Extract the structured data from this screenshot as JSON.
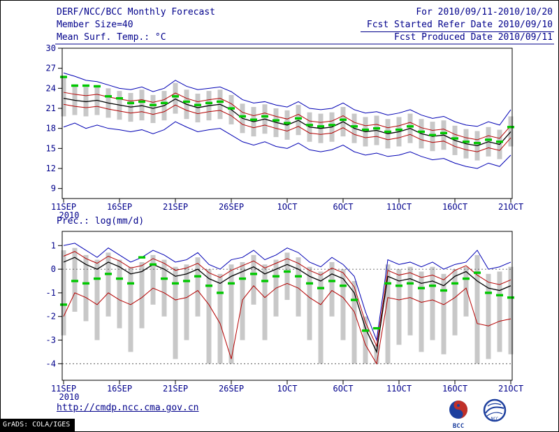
{
  "header": {
    "title": "DERF/NCC/BCC Monthly Forecast",
    "member_size": "Member Size=40",
    "for_period": "For 2010/09/11-2010/10/20",
    "fcst_refer": "Fcst Started Refer Date 2010/09/10",
    "fcst_produced": "Fcst Produced Date 2010/09/11"
  },
  "footer": {
    "url": "http://cmdp.ncc.cma.gov.cn",
    "credit": "GrADS: COLA/IGES",
    "bcc_logo_text": "BCC",
    "ncc_logo_text": "NCC"
  },
  "colors": {
    "label_text": "#00008b",
    "envelope_line": "#0000b4",
    "quartile_line": "#b40000",
    "mean_line": "#000000",
    "median_marker": "#00c800",
    "spread_bar": "#c8c8c8",
    "frame": "#000000"
  },
  "chart_data": [
    {
      "id": "surface-temperature",
      "type": "line",
      "title": "Mean Surf. Temp.: °C",
      "ylim": [
        7.5,
        30
      ],
      "yticks": [
        30,
        27,
        24,
        21,
        18,
        15,
        12,
        9
      ],
      "x_tick_days": [
        0,
        5,
        10,
        15,
        20,
        25,
        30,
        35,
        40
      ],
      "x_tick_labels": [
        "11SEP",
        "16SEP",
        "21SEP",
        "26SEP",
        "1OCT",
        "6OCT",
        "11OCT",
        "16OCT",
        "21OCT"
      ],
      "x_year_label": "2010",
      "series": [
        {
          "name": "ensemble-max",
          "color": "#0000b4",
          "width": 1,
          "values": [
            26.3,
            25.8,
            25.2,
            25.0,
            24.5,
            24.0,
            23.8,
            24.2,
            23.5,
            24.0,
            25.2,
            24.3,
            23.8,
            24.0,
            24.2,
            23.5,
            22.3,
            21.8,
            22.0,
            21.5,
            21.2,
            22.0,
            21.0,
            20.8,
            21.0,
            21.8,
            20.8,
            20.3,
            20.5,
            20.0,
            20.3,
            20.8,
            20.0,
            19.5,
            19.8,
            19.0,
            18.5,
            18.3,
            19.0,
            18.5,
            20.8
          ]
        },
        {
          "name": "ensemble-min",
          "color": "#0000b4",
          "width": 1,
          "values": [
            18.2,
            18.8,
            18.0,
            18.5,
            18.0,
            17.8,
            17.5,
            17.8,
            17.2,
            17.8,
            19.0,
            18.2,
            17.5,
            17.8,
            18.0,
            17.0,
            16.0,
            15.5,
            16.0,
            15.3,
            15.0,
            15.8,
            14.8,
            14.5,
            14.8,
            15.5,
            14.5,
            14.0,
            14.3,
            13.8,
            14.0,
            14.5,
            13.8,
            13.3,
            13.5,
            12.8,
            12.3,
            12.0,
            12.8,
            12.3,
            14.0
          ]
        },
        {
          "name": "plus-std",
          "color": "#b40000",
          "width": 1,
          "values": [
            23.4,
            23.1,
            22.9,
            23.1,
            22.7,
            22.4,
            22.1,
            22.3,
            21.9,
            22.3,
            23.3,
            22.5,
            22.0,
            22.3,
            22.5,
            21.7,
            20.4,
            19.9,
            20.3,
            19.8,
            19.4,
            20.1,
            19.1,
            18.9,
            19.1,
            19.9,
            18.9,
            18.4,
            18.6,
            18.1,
            18.4,
            18.9,
            18.1,
            17.7,
            17.9,
            17.1,
            16.6,
            16.3,
            16.9,
            16.5,
            18.4
          ]
        },
        {
          "name": "minus-std",
          "color": "#b40000",
          "width": 1,
          "values": [
            21.6,
            21.3,
            21.1,
            21.3,
            20.9,
            20.6,
            20.3,
            20.5,
            20.1,
            20.5,
            21.5,
            20.7,
            20.2,
            20.5,
            20.7,
            19.9,
            18.6,
            18.1,
            18.5,
            18.0,
            17.6,
            18.3,
            17.3,
            17.1,
            17.3,
            18.1,
            17.1,
            16.6,
            16.8,
            16.3,
            16.6,
            17.1,
            16.3,
            15.9,
            16.1,
            15.3,
            14.8,
            14.5,
            15.1,
            14.7,
            16.6
          ]
        },
        {
          "name": "ensemble-mean",
          "color": "#000000",
          "width": 1.3,
          "values": [
            22.5,
            22.2,
            22.0,
            22.2,
            21.8,
            21.5,
            21.2,
            21.4,
            21.0,
            21.4,
            22.4,
            21.6,
            21.1,
            21.4,
            21.6,
            20.8,
            19.5,
            19.0,
            19.4,
            18.9,
            18.5,
            19.2,
            18.2,
            18.0,
            18.2,
            19.0,
            18.0,
            17.5,
            17.7,
            17.2,
            17.5,
            18.0,
            17.2,
            16.8,
            17.0,
            16.2,
            15.7,
            15.4,
            16.0,
            15.6,
            17.5
          ]
        }
      ],
      "markers": {
        "name": "median",
        "color": "#00c800",
        "values": [
          25.7,
          24.4,
          24.4,
          24.3,
          22.8,
          22.5,
          21.8,
          22.0,
          21.5,
          21.8,
          22.8,
          22.0,
          21.5,
          21.8,
          22.0,
          21.0,
          19.8,
          19.3,
          19.8,
          19.2,
          18.8,
          19.5,
          18.5,
          18.3,
          18.5,
          19.3,
          18.3,
          17.8,
          18.0,
          17.5,
          17.8,
          18.3,
          17.5,
          17.0,
          17.3,
          16.5,
          16.0,
          15.8,
          16.3,
          16.0,
          18.2
        ]
      },
      "bars": {
        "name": "member-spread",
        "color": "#c8c8c8",
        "high": [
          25.9,
          24.6,
          24.2,
          24.5,
          24.0,
          23.6,
          23.3,
          23.8,
          23.0,
          23.6,
          24.8,
          23.8,
          23.2,
          23.6,
          23.8,
          23.0,
          21.7,
          21.2,
          21.6,
          21.0,
          20.7,
          21.5,
          20.4,
          20.2,
          20.4,
          21.2,
          20.2,
          19.7,
          19.9,
          19.4,
          19.7,
          20.2,
          19.4,
          19.0,
          19.2,
          18.4,
          17.9,
          17.6,
          18.2,
          17.8,
          19.8
        ],
        "low": [
          19.8,
          20.0,
          19.8,
          20.0,
          19.6,
          19.3,
          19.0,
          19.2,
          18.8,
          19.2,
          20.2,
          19.4,
          18.9,
          19.2,
          19.4,
          18.6,
          17.3,
          16.8,
          17.2,
          16.7,
          16.3,
          17.0,
          16.0,
          15.8,
          16.0,
          16.8,
          15.8,
          15.3,
          15.5,
          15.0,
          15.3,
          15.8,
          15.0,
          14.6,
          14.8,
          14.0,
          13.5,
          13.2,
          13.8,
          13.4,
          15.3
        ]
      }
    },
    {
      "id": "precipitation",
      "type": "line",
      "title": "Prec.: log(mm/d)",
      "ylim": [
        -4.7,
        1.6
      ],
      "yticks": [
        1,
        0,
        -1,
        -2,
        -3,
        -4
      ],
      "ref_lines": [
        {
          "value": 0
        },
        {
          "value": -4
        }
      ],
      "x_tick_days": [
        0,
        5,
        10,
        15,
        20,
        25,
        30,
        35,
        40
      ],
      "x_tick_labels": [
        "11SEP",
        "16SEP",
        "21SEP",
        "26SEP",
        "1OCT",
        "6OCT",
        "11OCT",
        "16OCT",
        "21OCT"
      ],
      "x_year_label": "2010",
      "series": [
        {
          "name": "ensemble-max",
          "color": "#0000b4",
          "width": 1,
          "values": [
            1.0,
            1.1,
            0.8,
            0.5,
            0.9,
            0.6,
            0.3,
            0.5,
            0.8,
            0.6,
            0.3,
            0.4,
            0.7,
            0.2,
            0.0,
            0.4,
            0.5,
            0.8,
            0.4,
            0.6,
            0.9,
            0.7,
            0.3,
            0.1,
            0.5,
            0.2,
            -0.3,
            -1.8,
            -3.0,
            0.4,
            0.2,
            0.3,
            0.1,
            0.3,
            0.0,
            0.2,
            0.3,
            0.8,
            0.0,
            0.1,
            0.3
          ]
        },
        {
          "name": "plus-std",
          "color": "#b40000",
          "width": 1,
          "values": [
            0.55,
            0.75,
            0.45,
            0.25,
            0.55,
            0.35,
            0.05,
            0.15,
            0.45,
            0.25,
            -0.05,
            0.05,
            0.25,
            -0.15,
            -0.35,
            -0.05,
            0.15,
            0.35,
            0.05,
            0.25,
            0.45,
            0.25,
            -0.05,
            -0.25,
            0.05,
            -0.15,
            -0.75,
            -2.25,
            -3.25,
            -0.05,
            -0.25,
            -0.15,
            -0.35,
            -0.25,
            -0.45,
            -0.05,
            0.15,
            -0.25,
            -0.55,
            -0.65,
            -0.45
          ]
        },
        {
          "name": "minus-std",
          "color": "#b40000",
          "width": 1,
          "values": [
            -2.0,
            -1.0,
            -1.2,
            -1.5,
            -1.0,
            -1.3,
            -1.5,
            -1.2,
            -0.8,
            -1.0,
            -1.3,
            -1.2,
            -0.9,
            -1.5,
            -2.3,
            -3.8,
            -1.3,
            -0.7,
            -1.2,
            -0.8,
            -0.6,
            -0.8,
            -1.2,
            -1.5,
            -0.9,
            -1.2,
            -1.8,
            -3.2,
            -4.0,
            -1.2,
            -1.3,
            -1.2,
            -1.4,
            -1.3,
            -1.5,
            -1.2,
            -0.8,
            -2.3,
            -2.4,
            -2.2,
            -2.1
          ]
        },
        {
          "name": "ensemble-mean",
          "color": "#000000",
          "width": 1.3,
          "values": [
            0.3,
            0.5,
            0.2,
            0.0,
            0.3,
            0.1,
            -0.2,
            -0.1,
            0.2,
            0.0,
            -0.3,
            -0.2,
            0.0,
            -0.4,
            -0.6,
            -0.3,
            -0.1,
            0.1,
            -0.2,
            0.0,
            0.2,
            0.0,
            -0.3,
            -0.5,
            -0.2,
            -0.4,
            -1.0,
            -2.5,
            -3.5,
            -0.3,
            -0.5,
            -0.4,
            -0.6,
            -0.5,
            -0.7,
            -0.3,
            -0.1,
            -0.5,
            -0.8,
            -0.9,
            -0.7
          ]
        }
      ],
      "markers": {
        "name": "median",
        "color": "#00c800",
        "values": [
          -1.5,
          -0.5,
          -0.6,
          -0.4,
          -0.2,
          -0.4,
          -0.6,
          0.5,
          0.2,
          -0.4,
          -0.6,
          -0.5,
          -0.3,
          -0.7,
          -1.0,
          -0.6,
          -0.4,
          -0.2,
          -0.5,
          -0.3,
          -0.1,
          -0.3,
          -0.6,
          -0.8,
          -0.5,
          -0.7,
          -1.3,
          -2.6,
          -2.5,
          -0.6,
          -0.7,
          -0.6,
          -0.8,
          -0.7,
          -0.9,
          -0.6,
          -0.4,
          -0.15,
          -1.0,
          -1.1,
          -1.2
        ]
      },
      "bars": {
        "name": "member-spread",
        "color": "#c8c8c8",
        "high": [
          0.8,
          0.9,
          0.6,
          0.4,
          0.7,
          0.4,
          0.1,
          0.3,
          0.6,
          0.4,
          0.1,
          0.2,
          0.5,
          0.0,
          -0.2,
          0.2,
          0.3,
          0.6,
          0.2,
          0.4,
          0.7,
          0.5,
          0.1,
          -0.1,
          0.3,
          0.0,
          -0.5,
          -2.0,
          -3.2,
          0.2,
          0.0,
          0.1,
          -0.1,
          0.1,
          -0.2,
          0.0,
          0.1,
          0.6,
          -0.2,
          -0.1,
          0.1
        ],
        "low": [
          -2.8,
          -1.8,
          -2.2,
          -3.0,
          -2.0,
          -2.5,
          -3.5,
          -2.5,
          -1.5,
          -2.0,
          -3.8,
          -3.0,
          -2.0,
          -4.0,
          -4.0,
          -4.0,
          -3.0,
          -1.5,
          -3.0,
          -2.0,
          -1.3,
          -2.0,
          -3.0,
          -4.0,
          -2.0,
          -3.0,
          -4.0,
          -4.0,
          -4.0,
          -4.0,
          -3.2,
          -2.8,
          -3.5,
          -3.0,
          -3.6,
          -2.8,
          -2.0,
          -4.0,
          -3.8,
          -3.5,
          -3.6
        ]
      }
    }
  ]
}
